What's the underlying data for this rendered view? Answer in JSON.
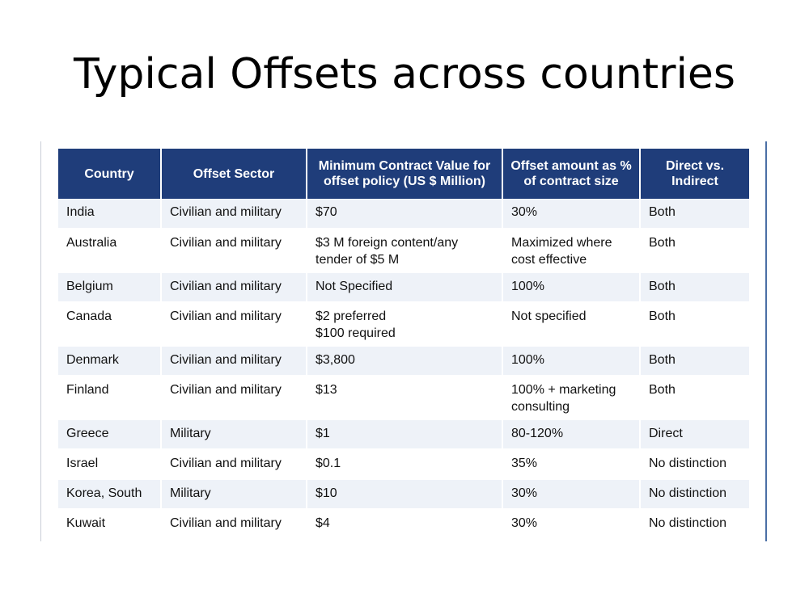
{
  "title": "Typical Offsets across countries",
  "table": {
    "headers": [
      "Country",
      "Offset Sector",
      "Minimum Contract Value for offset policy (US $ Million)",
      "Offset amount as % of contract size",
      "Direct vs. Indirect"
    ],
    "rows": [
      {
        "country": "India",
        "sector": "Civilian and military",
        "min_value": "$70",
        "amount": "30%",
        "type": "Both"
      },
      {
        "country": "Australia",
        "sector": "Civilian and military",
        "min_value": "$3 M foreign content/any tender of $5 M",
        "amount": "Maximized where cost effective",
        "type": "Both"
      },
      {
        "country": "Belgium",
        "sector": "Civilian and military",
        "min_value": "Not Specified",
        "amount": "100%",
        "type": "Both"
      },
      {
        "country": "Canada",
        "sector": "Civilian and military",
        "min_value": "$2 preferred\n$100 required",
        "amount": "Not specified",
        "type": "Both"
      },
      {
        "country": "Denmark",
        "sector": "Civilian and military",
        "min_value": "$3,800",
        "amount": "100%",
        "type": "Both"
      },
      {
        "country": "Finland",
        "sector": "Civilian and military",
        "min_value": "$13",
        "amount": "100% + marketing consulting",
        "type": "Both"
      },
      {
        "country": "Greece",
        "sector": "Military",
        "min_value": "$1",
        "amount": "80-120%",
        "type": "Direct"
      },
      {
        "country": "Israel",
        "sector": "Civilian and military",
        "min_value": "$0.1",
        "amount": "35%",
        "type": "No distinction"
      },
      {
        "country": "Korea, South",
        "sector": "Military",
        "min_value": "$10",
        "amount": "30%",
        "type": "No distinction"
      },
      {
        "country": "Kuwait",
        "sector": "Civilian and military",
        "min_value": "$4",
        "amount": "30%",
        "type": "No distinction"
      }
    ]
  }
}
